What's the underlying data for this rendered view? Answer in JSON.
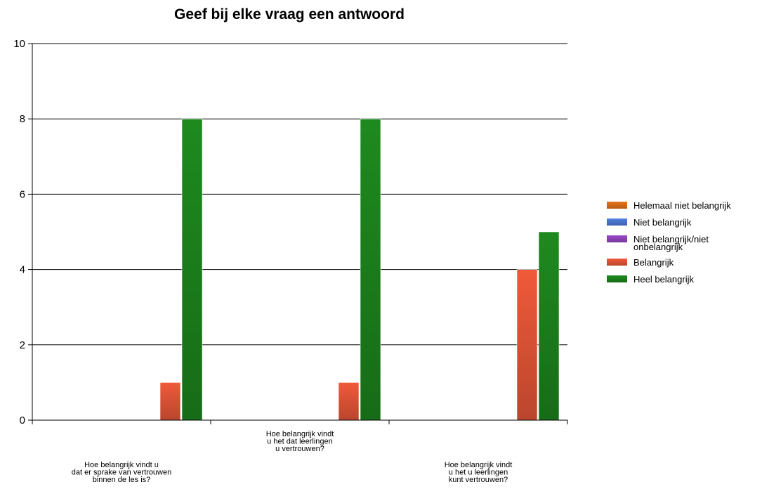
{
  "chart_data": {
    "type": "bar",
    "title": "Geef bij elke vraag een antwoord",
    "xlabel": "",
    "ylabel": "",
    "ylim": [
      0,
      10
    ],
    "yticks": [
      0,
      2,
      4,
      6,
      8,
      10
    ],
    "grid": true,
    "legend_position": "right",
    "categories": [
      "Hoe belangrijk vindt u dat er sprake van vertrouwen binnen de les is?",
      "Hoe belangrijk vindt u het dat leerlingen u vertrouwen?",
      "Hoe belangrijk vindt u het u leerlingen kunt vertrouwen?"
    ],
    "category_label_lines": [
      [
        "Hoe belangrijk vindt u",
        "dat er sprake van vertrouwen",
        "binnen de les is?"
      ],
      [
        "Hoe belangrijk vindt",
        "u het dat leerlingen",
        "u vertrouwen?"
      ],
      [
        "Hoe belangrijk vindt",
        "u het u leerlingen",
        "kunt vertrouwen?"
      ]
    ],
    "series": [
      {
        "name": "Helemaal niet belangrijk",
        "color": "#e8731c",
        "values": [
          0,
          0,
          0
        ]
      },
      {
        "name": "Niet belangrijk",
        "color": "#4f7fe0",
        "values": [
          0,
          0,
          0
        ]
      },
      {
        "name": "Niet belangrijk/niet onbelangrijk",
        "color": "#9a49c9",
        "values": [
          0,
          0,
          0
        ]
      },
      {
        "name": "Belangrijk",
        "color": "#ef5a3a",
        "values": [
          1,
          1,
          4
        ]
      },
      {
        "name": "Heel belangrijk",
        "color": "#1e8a1e",
        "values": [
          8,
          8,
          5
        ]
      }
    ],
    "legend_label_lines": [
      [
        "Helemaal niet belangrijk"
      ],
      [
        "Niet belangrijk"
      ],
      [
        "Niet belangrijk/niet",
        "onbelangrijk"
      ],
      [
        "Belangrijk"
      ],
      [
        "Heel belangrijk"
      ]
    ]
  }
}
